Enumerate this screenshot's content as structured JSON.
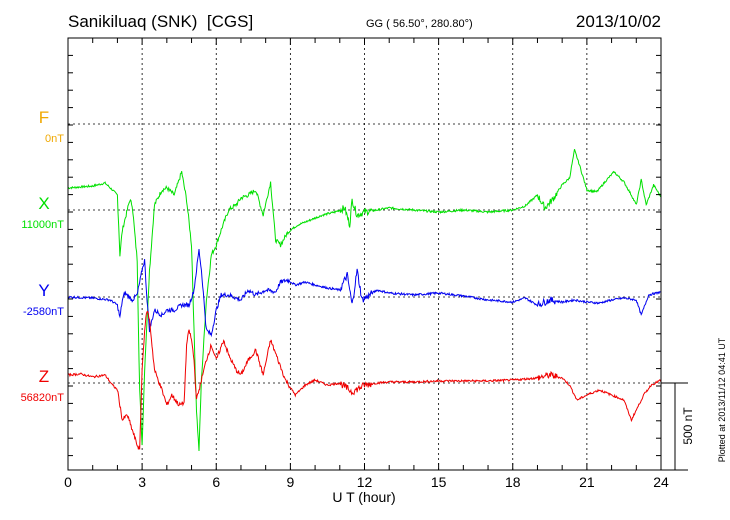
{
  "chart_data": {
    "type": "line",
    "title": "Sanikiluaq (SNK)  [CGS]",
    "subtitle": "GG ( 56.50°, 280.80°)",
    "date": "2013/10/02",
    "xlabel": "U T (hour)",
    "xlim": [
      0,
      24
    ],
    "x_ticks": [
      "0",
      "3",
      "6",
      "9",
      "12",
      "15",
      "18",
      "21",
      "24"
    ],
    "scale_bar_label": "500 nT",
    "scale_bar_nT": 500,
    "plotted_note": "Plotted at 2013/11/12 04:41 UT",
    "grid": true,
    "series": [
      {
        "name": "F",
        "baseline_label": "0nT",
        "color": "#f0a800",
        "points": []
      },
      {
        "name": "X",
        "baseline_label": "11000nT",
        "color": "#00e000",
        "points": [
          [
            0,
            127
          ],
          [
            1,
            138
          ],
          [
            1.5,
            155
          ],
          [
            1.8,
            115
          ],
          [
            2.0,
            86
          ],
          [
            2.1,
            -259
          ],
          [
            2.2,
            -115
          ],
          [
            2.4,
            0
          ],
          [
            2.5,
            58
          ],
          [
            2.6,
            29
          ],
          [
            2.8,
            -288
          ],
          [
            2.9,
            -1035
          ],
          [
            3.0,
            -1351
          ],
          [
            3.1,
            -920
          ],
          [
            3.3,
            -345
          ],
          [
            3.5,
            29
          ],
          [
            3.8,
            115
          ],
          [
            4.0,
            127
          ],
          [
            4.3,
            86
          ],
          [
            4.6,
            219
          ],
          [
            4.8,
            58
          ],
          [
            5.0,
            -201
          ],
          [
            5.1,
            -690
          ],
          [
            5.2,
            -1150
          ],
          [
            5.3,
            -1380
          ],
          [
            5.4,
            -977
          ],
          [
            5.6,
            -518
          ],
          [
            5.8,
            -259
          ],
          [
            6.0,
            -201
          ],
          [
            6.2,
            -115
          ],
          [
            6.5,
            0
          ],
          [
            6.8,
            29
          ],
          [
            7.0,
            69
          ],
          [
            7.3,
            86
          ],
          [
            7.6,
            115
          ],
          [
            7.9,
            -29
          ],
          [
            8.2,
            161
          ],
          [
            8.4,
            -172
          ],
          [
            8.6,
            -201
          ],
          [
            8.9,
            -126
          ],
          [
            9.3,
            -86
          ],
          [
            9.8,
            -58
          ],
          [
            10.3,
            -29
          ],
          [
            10.8,
            -12
          ],
          [
            11.2,
            12
          ],
          [
            11.4,
            -86
          ],
          [
            11.5,
            58
          ],
          [
            11.7,
            -29
          ],
          [
            12,
            -12
          ],
          [
            12.5,
            0
          ],
          [
            13,
            12
          ],
          [
            14,
            0
          ],
          [
            15,
            -12
          ],
          [
            16,
            0
          ],
          [
            17,
            -12
          ],
          [
            18,
            0
          ],
          [
            18.5,
            23
          ],
          [
            19,
            86
          ],
          [
            19.3,
            12
          ],
          [
            19.6,
            58
          ],
          [
            20,
            144
          ],
          [
            20.3,
            184
          ],
          [
            20.5,
            345
          ],
          [
            20.7,
            259
          ],
          [
            21,
            115
          ],
          [
            21.4,
            104
          ],
          [
            21.8,
            173
          ],
          [
            22.1,
            219
          ],
          [
            22.5,
            161
          ],
          [
            22.8,
            86
          ],
          [
            23,
            29
          ],
          [
            23.2,
            173
          ],
          [
            23.4,
            29
          ],
          [
            23.7,
            144
          ],
          [
            24,
            75
          ]
        ]
      },
      {
        "name": "Y",
        "baseline_label": "-2580nT",
        "color": "#0000f0",
        "points": [
          [
            0,
            0
          ],
          [
            1,
            -6
          ],
          [
            1.7,
            -17
          ],
          [
            2.0,
            -46
          ],
          [
            2.1,
            -120
          ],
          [
            2.2,
            -17
          ],
          [
            2.3,
            23
          ],
          [
            2.6,
            -17
          ],
          [
            2.8,
            12
          ],
          [
            3.0,
            155
          ],
          [
            3.1,
            213
          ],
          [
            3.2,
            -17
          ],
          [
            3.3,
            -190
          ],
          [
            3.5,
            -75
          ],
          [
            3.8,
            -104
          ],
          [
            4.0,
            -75
          ],
          [
            4.3,
            -75
          ],
          [
            4.6,
            -46
          ],
          [
            4.9,
            -46
          ],
          [
            5.1,
            40
          ],
          [
            5.3,
            270
          ],
          [
            5.4,
            155
          ],
          [
            5.6,
            -190
          ],
          [
            5.8,
            -218
          ],
          [
            6.0,
            -75
          ],
          [
            6.2,
            12
          ],
          [
            6.5,
            12
          ],
          [
            7.0,
            -17
          ],
          [
            7.3,
            40
          ],
          [
            7.6,
            12
          ],
          [
            8.0,
            40
          ],
          [
            8.4,
            29
          ],
          [
            8.6,
            86
          ],
          [
            8.9,
            98
          ],
          [
            9.2,
            69
          ],
          [
            9.6,
            86
          ],
          [
            10,
            69
          ],
          [
            10.5,
            52
          ],
          [
            11,
            40
          ],
          [
            11.3,
            127
          ],
          [
            11.5,
            -46
          ],
          [
            11.7,
            155
          ],
          [
            11.9,
            -17
          ],
          [
            12.5,
            40
          ],
          [
            13,
            23
          ],
          [
            14,
            12
          ],
          [
            15,
            23
          ],
          [
            16,
            6
          ],
          [
            17,
            -17
          ],
          [
            18,
            -29
          ],
          [
            18.5,
            -6
          ],
          [
            19,
            -46
          ],
          [
            19.5,
            -17
          ],
          [
            20,
            -29
          ],
          [
            20.5,
            -17
          ],
          [
            21,
            -29
          ],
          [
            21.5,
            -35
          ],
          [
            22,
            -17
          ],
          [
            22.5,
            -6
          ],
          [
            23,
            -17
          ],
          [
            23.2,
            -104
          ],
          [
            23.5,
            12
          ],
          [
            24,
            29
          ]
        ]
      },
      {
        "name": "Z",
        "baseline_label": "56820nT",
        "color": "#f00000",
        "points": [
          [
            0,
            46
          ],
          [
            0.5,
            52
          ],
          [
            1,
            35
          ],
          [
            1.5,
            46
          ],
          [
            1.8,
            -12
          ],
          [
            2.0,
            -40
          ],
          [
            2.2,
            -213
          ],
          [
            2.4,
            -184
          ],
          [
            2.6,
            -270
          ],
          [
            2.8,
            -357
          ],
          [
            2.9,
            -385
          ],
          [
            3.0,
            75
          ],
          [
            3.1,
            305
          ],
          [
            3.2,
            420
          ],
          [
            3.3,
            362
          ],
          [
            3.5,
            75
          ],
          [
            3.8,
            -40
          ],
          [
            4.0,
            -127
          ],
          [
            4.2,
            -69
          ],
          [
            4.5,
            -127
          ],
          [
            4.7,
            -115
          ],
          [
            4.8,
            219
          ],
          [
            4.9,
            305
          ],
          [
            5.0,
            247
          ],
          [
            5.1,
            132
          ],
          [
            5.2,
            -98
          ],
          [
            5.4,
            17
          ],
          [
            5.6,
            132
          ],
          [
            5.8,
            219
          ],
          [
            6.0,
            132
          ],
          [
            6.3,
            247
          ],
          [
            6.5,
            161
          ],
          [
            6.8,
            75
          ],
          [
            7.0,
            46
          ],
          [
            7.3,
            132
          ],
          [
            7.6,
            190
          ],
          [
            7.9,
            46
          ],
          [
            8.2,
            247
          ],
          [
            8.5,
            132
          ],
          [
            8.8,
            17
          ],
          [
            9.2,
            -69
          ],
          [
            9.6,
            -12
          ],
          [
            10,
            17
          ],
          [
            10.5,
            -12
          ],
          [
            11,
            0
          ],
          [
            11.5,
            -52
          ],
          [
            12,
            -12
          ],
          [
            12.5,
            0
          ],
          [
            13,
            6
          ],
          [
            14,
            6
          ],
          [
            15,
            12
          ],
          [
            16,
            12
          ],
          [
            17,
            12
          ],
          [
            18,
            17
          ],
          [
            19,
            29
          ],
          [
            19.5,
            46
          ],
          [
            20,
            29
          ],
          [
            20.3,
            -12
          ],
          [
            20.6,
            -98
          ],
          [
            21,
            -69
          ],
          [
            21.5,
            -40
          ],
          [
            22,
            -69
          ],
          [
            22.5,
            -98
          ],
          [
            22.8,
            -213
          ],
          [
            23.1,
            -127
          ],
          [
            23.3,
            -69
          ],
          [
            23.6,
            -12
          ],
          [
            24,
            17
          ]
        ]
      }
    ]
  }
}
